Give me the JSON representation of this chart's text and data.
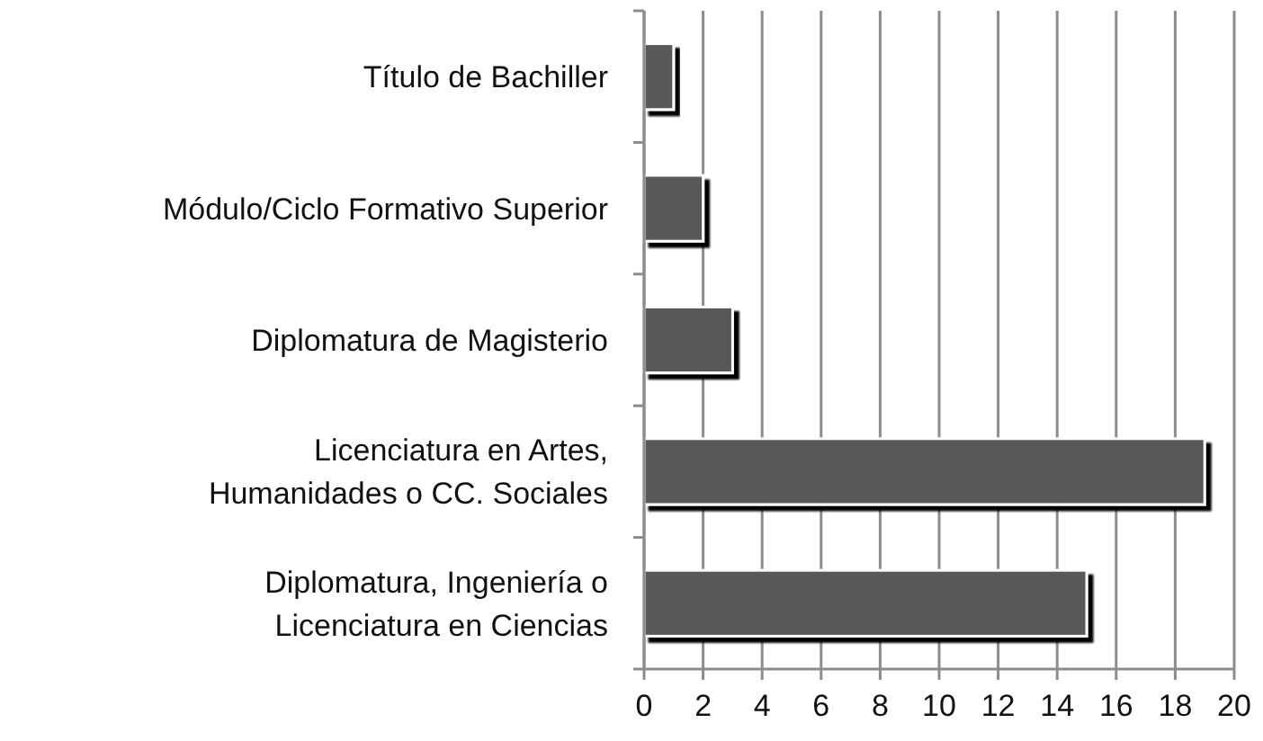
{
  "chart_data": {
    "type": "bar",
    "orientation": "horizontal",
    "categories": [
      "Título de Bachiller",
      "Módulo/Ciclo Formativo Superior",
      "Diplomatura de Magisterio",
      "Licenciatura en Artes,\nHumanidades o CC. Sociales",
      "Diplomatura, Ingeniería o\nLicenciatura en Ciencias"
    ],
    "values": [
      1,
      2,
      3,
      19,
      15
    ],
    "color": "#595959",
    "xlim": [
      0,
      20
    ],
    "xticks": [
      0,
      2,
      4,
      6,
      8,
      10,
      12,
      14,
      16,
      18,
      20
    ],
    "grid": "x"
  }
}
